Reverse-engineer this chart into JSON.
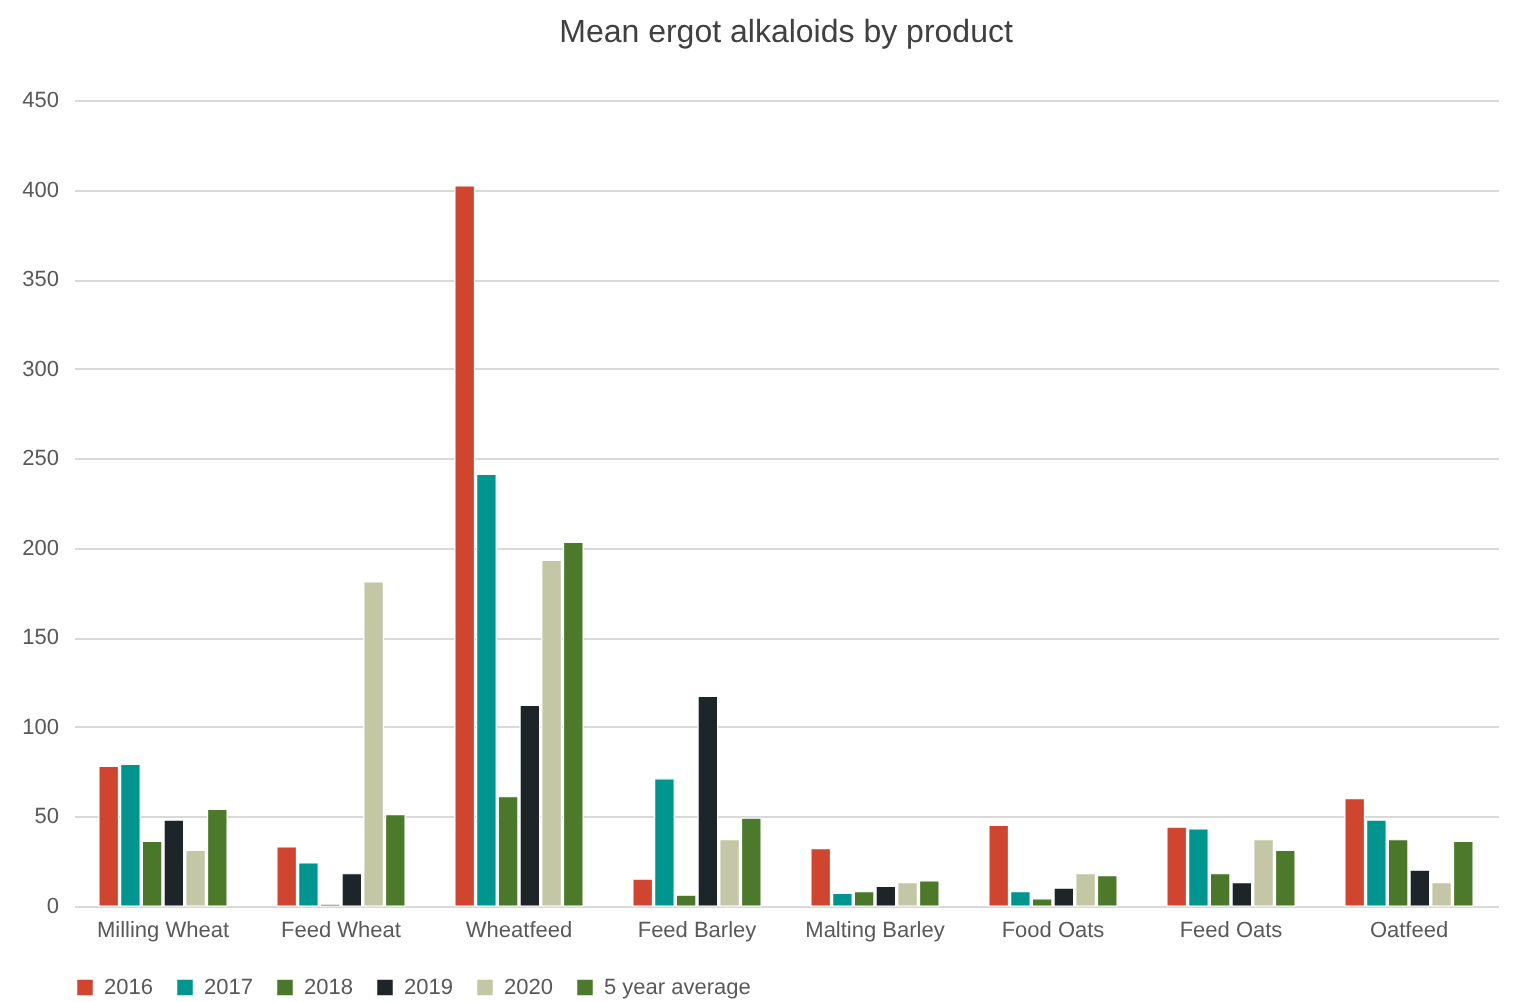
{
  "chart_data": {
    "type": "bar",
    "title": "Mean ergot alkaloids by product",
    "categories": [
      "Milling Wheat",
      "Feed Wheat",
      "Wheatfeed",
      "Feed Barley",
      "Malting Barley",
      "Food Oats",
      "Feed Oats",
      "Oatfeed"
    ],
    "series": [
      {
        "name": "2016",
        "color": "#d04530",
        "values": [
          78,
          33,
          402,
          15,
          32,
          45,
          44,
          60
        ]
      },
      {
        "name": "2017",
        "color": "#00968f",
        "values": [
          79,
          24,
          241,
          71,
          7,
          8,
          43,
          48
        ]
      },
      {
        "name": "2018",
        "color": "#4a7729",
        "values": [
          36,
          1,
          61,
          6,
          8,
          4,
          18,
          37
        ]
      },
      {
        "name": "2019",
        "color": "#1e2529",
        "values": [
          48,
          18,
          112,
          117,
          11,
          10,
          13,
          20
        ]
      },
      {
        "name": "2020",
        "color": "#c3c7a6",
        "values": [
          31,
          181,
          193,
          37,
          13,
          18,
          37,
          13
        ]
      },
      {
        "name": "5 year average",
        "color": "#4c7a2a",
        "values": [
          54,
          51,
          203,
          49,
          14,
          17,
          31,
          36
        ]
      }
    ],
    "ylim": [
      0,
      450
    ],
    "yticks": [
      0,
      50,
      100,
      150,
      200,
      250,
      300,
      350,
      400,
      450
    ],
    "grid": "y",
    "legend": "bottom"
  }
}
